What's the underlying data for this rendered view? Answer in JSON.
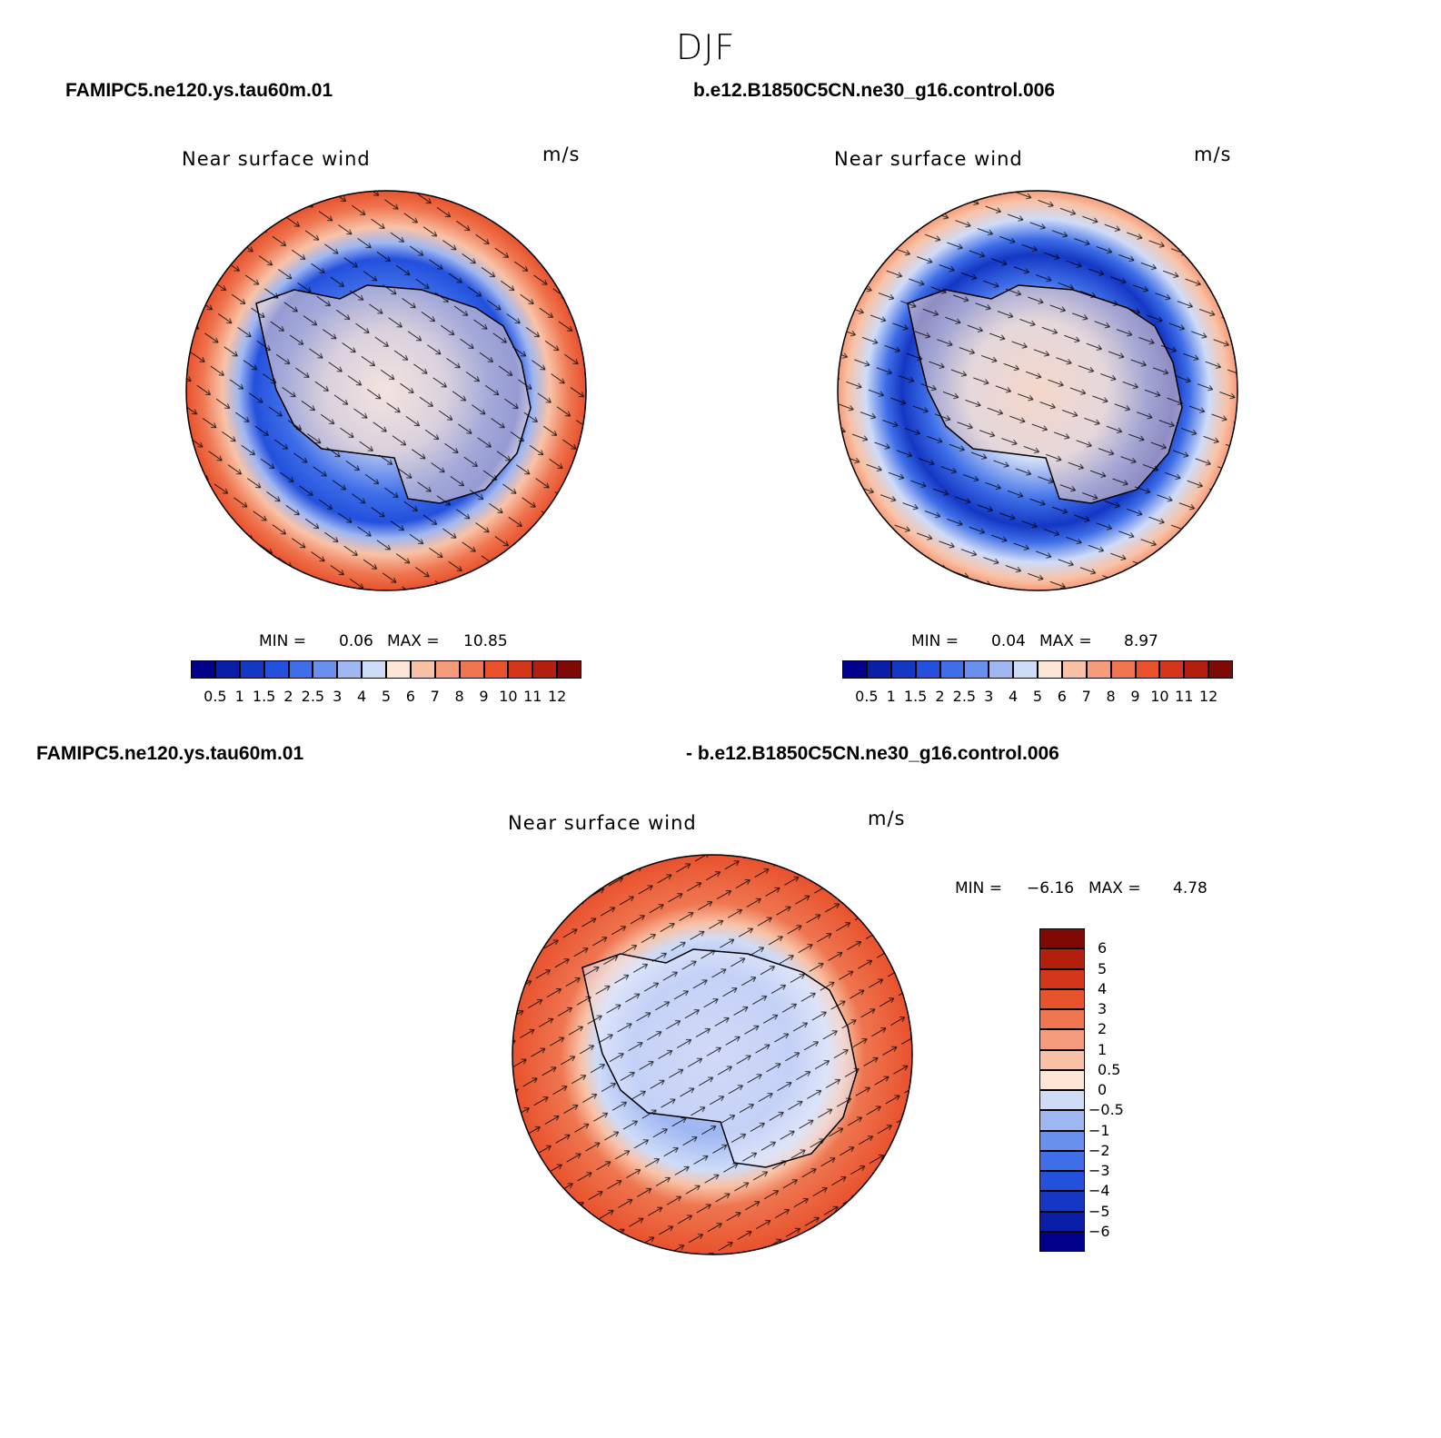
{
  "figure": {
    "title": "DJF"
  },
  "panels": [
    {
      "case_name": "FAMIPC5.ne120.ys.tau60m.01",
      "variable": "Near surface wind",
      "units": "m/s",
      "min_label": "MIN =",
      "min_value": "0.06",
      "max_label": "MAX =",
      "max_value": "10.85",
      "colorbar": {
        "ticks": [
          "0.5",
          "1",
          "1.5",
          "2",
          "2.5",
          "3",
          "4",
          "5",
          "6",
          "7",
          "8",
          "9",
          "10",
          "11",
          "12"
        ],
        "colors": [
          "#00008b",
          "#0a1fa8",
          "#1437c4",
          "#2350dd",
          "#3e6ee8",
          "#6a90ee",
          "#9fb7f2",
          "#cfdcf8",
          "#fde6d6",
          "#f9c2a6",
          "#f59d7b",
          "#ef7650",
          "#e8522d",
          "#d4361a",
          "#b2200d",
          "#7f0a05"
        ]
      }
    },
    {
      "case_name": "b.e12.B1850C5CN.ne30_g16.control.006",
      "variable": "Near surface wind",
      "units": "m/s",
      "min_label": "MIN =",
      "min_value": "0.04",
      "max_label": "MAX =",
      "max_value": "8.97",
      "colorbar": {
        "ticks": [
          "0.5",
          "1",
          "1.5",
          "2",
          "2.5",
          "3",
          "4",
          "5",
          "6",
          "7",
          "8",
          "9",
          "10",
          "11",
          "12"
        ],
        "colors": [
          "#00008b",
          "#0a1fa8",
          "#1437c4",
          "#2350dd",
          "#3e6ee8",
          "#6a90ee",
          "#9fb7f2",
          "#cfdcf8",
          "#fde6d6",
          "#f9c2a6",
          "#f59d7b",
          "#ef7650",
          "#e8522d",
          "#d4361a",
          "#b2200d",
          "#7f0a05"
        ]
      }
    },
    {
      "case_name_a": "FAMIPC5.ne120.ys.tau60m.01",
      "case_name_b": "- b.e12.B1850C5CN.ne30_g16.control.006",
      "variable": "Near surface wind",
      "units": "m/s",
      "min_label": "MIN =",
      "min_value": "−6.16",
      "max_label": "MAX =",
      "max_value": "4.78",
      "colorbar": {
        "ticks": [
          "6",
          "5",
          "4",
          "3",
          "2",
          "1",
          "0.5",
          "0",
          "−0.5",
          "−1",
          "−2",
          "−3",
          "−4",
          "−5",
          "−6"
        ],
        "colors": [
          "#7f0a05",
          "#b2200d",
          "#d4361a",
          "#e8522d",
          "#ef7650",
          "#f59d7b",
          "#f9c2a6",
          "#fde6d6",
          "#cfdcf8",
          "#9fb7f2",
          "#6a90ee",
          "#3e6ee8",
          "#2350dd",
          "#1437c4",
          "#0a1fa8",
          "#00008b"
        ]
      }
    }
  ]
}
